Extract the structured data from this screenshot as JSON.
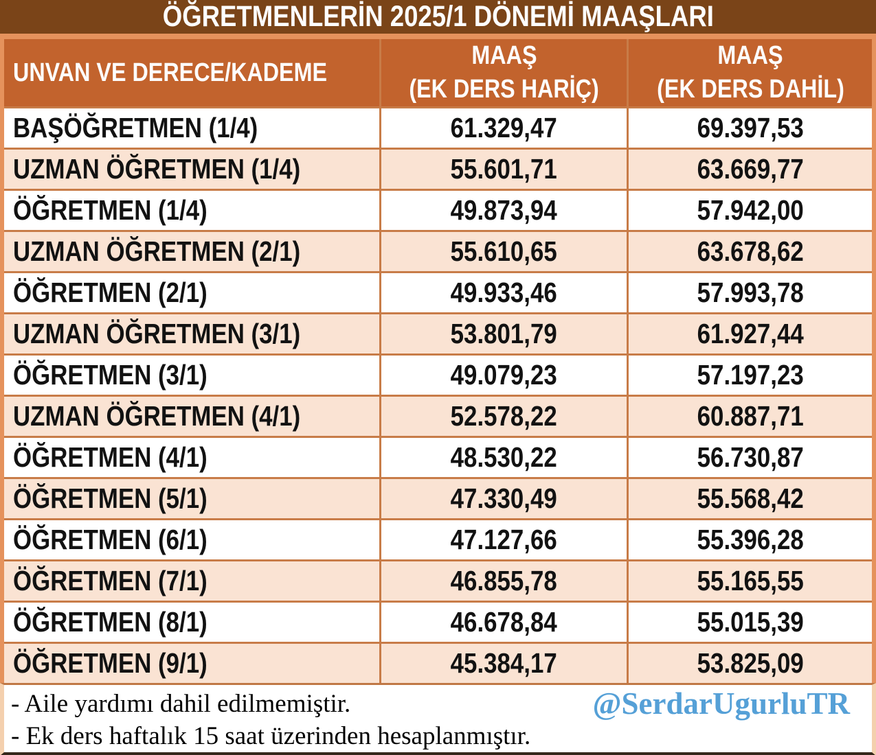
{
  "title": "ÖĞRETMENLERİN 2025/1 DÖNEMİ MAAŞLARI",
  "table": {
    "columns": [
      {
        "label": "UNVAN VE DERECE/KADEME"
      },
      {
        "line1": "MAAŞ",
        "line2": "(EK DERS HARİÇ)"
      },
      {
        "line1": "MAAŞ",
        "line2": "(EK DERS DAHİL)"
      }
    ],
    "rows": [
      {
        "unvan": "BAŞÖĞRETMEN (1/4)",
        "maas_haric": "61.329,47",
        "maas_dahil": "69.397,53"
      },
      {
        "unvan": "UZMAN ÖĞRETMEN (1/4)",
        "maas_haric": "55.601,71",
        "maas_dahil": "63.669,77"
      },
      {
        "unvan": "ÖĞRETMEN (1/4)",
        "maas_haric": "49.873,94",
        "maas_dahil": "57.942,00"
      },
      {
        "unvan": "UZMAN ÖĞRETMEN (2/1)",
        "maas_haric": "55.610,65",
        "maas_dahil": "63.678,62"
      },
      {
        "unvan": "ÖĞRETMEN (2/1)",
        "maas_haric": "49.933,46",
        "maas_dahil": "57.993,78"
      },
      {
        "unvan": "UZMAN ÖĞRETMEN (3/1)",
        "maas_haric": "53.801,79",
        "maas_dahil": "61.927,44"
      },
      {
        "unvan": "ÖĞRETMEN (3/1)",
        "maas_haric": "49.079,23",
        "maas_dahil": "57.197,23"
      },
      {
        "unvan": "UZMAN ÖĞRETMEN (4/1)",
        "maas_haric": "52.578,22",
        "maas_dahil": "60.887,71"
      },
      {
        "unvan": "ÖĞRETMEN (4/1)",
        "maas_haric": "48.530,22",
        "maas_dahil": "56.730,87"
      },
      {
        "unvan": "ÖĞRETMEN (5/1)",
        "maas_haric": "47.330,49",
        "maas_dahil": "55.568,42"
      },
      {
        "unvan": "ÖĞRETMEN (6/1)",
        "maas_haric": "47.127,66",
        "maas_dahil": "55.396,28"
      },
      {
        "unvan": "ÖĞRETMEN (7/1)",
        "maas_haric": "46.855,78",
        "maas_dahil": "55.165,55"
      },
      {
        "unvan": "ÖĞRETMEN (8/1)",
        "maas_haric": "46.678,84",
        "maas_dahil": "55.015,39"
      },
      {
        "unvan": "ÖĞRETMEN (9/1)",
        "maas_haric": "45.384,17",
        "maas_dahil": "53.825,09"
      }
    ]
  },
  "footer": {
    "note1": "- Aile yardımı dahil edilmemiştir.",
    "note2": "- Ek ders haftalık 15 saat üzerinden hesaplanmıştır.",
    "handle": "@SerdarUgurluTR"
  },
  "colors": {
    "title_bg": "#7A4418",
    "header_bg": "#C2632D",
    "grid_border": "#C87C48",
    "outer_border": "#E5925C",
    "row_alt_bg": "#FAE3D3",
    "handle_color": "#55A0D7",
    "footer_bottom_border": "#34271A"
  }
}
